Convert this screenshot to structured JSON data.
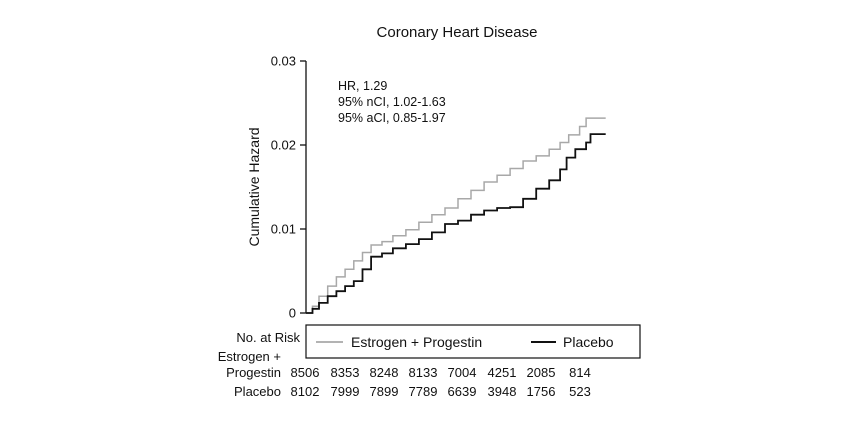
{
  "chart_data": {
    "type": "line",
    "title": "Coronary Heart Disease",
    "ylabel": "Cumulative Hazard",
    "xlabel": "",
    "ylim": [
      0,
      0.03
    ],
    "xlim": [
      0,
      7
    ],
    "yticks": [
      {
        "value": 0,
        "label": "0"
      },
      {
        "value": 0.01,
        "label": "0.01"
      },
      {
        "value": 0.02,
        "label": "0.02"
      },
      {
        "value": 0.03,
        "label": "0.03"
      }
    ],
    "annotation": [
      "HR, 1.29",
      "95% nCI, 1.02-1.63",
      "95% aCI, 0.85-1.97"
    ],
    "legend_position": "bottom",
    "series": [
      {
        "name": "Estrogen + Progestin",
        "color": "#a8a8a8",
        "points": [
          [
            0,
            0
          ],
          [
            0.15,
            0.0008
          ],
          [
            0.3,
            0.002
          ],
          [
            0.5,
            0.0032
          ],
          [
            0.7,
            0.0043
          ],
          [
            0.9,
            0.0052
          ],
          [
            1.1,
            0.0062
          ],
          [
            1.3,
            0.0072
          ],
          [
            1.5,
            0.0081
          ],
          [
            1.75,
            0.0085
          ],
          [
            2.0,
            0.0092
          ],
          [
            2.3,
            0.0099
          ],
          [
            2.6,
            0.0108
          ],
          [
            2.9,
            0.0117
          ],
          [
            3.2,
            0.0125
          ],
          [
            3.5,
            0.0136
          ],
          [
            3.8,
            0.0146
          ],
          [
            4.1,
            0.0156
          ],
          [
            4.4,
            0.0164
          ],
          [
            4.7,
            0.0172
          ],
          [
            5.0,
            0.0181
          ],
          [
            5.3,
            0.0187
          ],
          [
            5.6,
            0.0195
          ],
          [
            5.85,
            0.0203
          ],
          [
            6.05,
            0.0212
          ],
          [
            6.3,
            0.0222
          ],
          [
            6.45,
            0.0232
          ],
          [
            6.9,
            0.0232
          ]
        ]
      },
      {
        "name": "Placebo",
        "color": "#111111",
        "points": [
          [
            0,
            0
          ],
          [
            0.15,
            0.0005
          ],
          [
            0.3,
            0.0012
          ],
          [
            0.5,
            0.002
          ],
          [
            0.7,
            0.0026
          ],
          [
            0.9,
            0.0032
          ],
          [
            1.1,
            0.0038
          ],
          [
            1.3,
            0.0052
          ],
          [
            1.5,
            0.0067
          ],
          [
            1.75,
            0.0071
          ],
          [
            2.0,
            0.0077
          ],
          [
            2.3,
            0.0082
          ],
          [
            2.6,
            0.0088
          ],
          [
            2.9,
            0.0096
          ],
          [
            3.2,
            0.0106
          ],
          [
            3.5,
            0.011
          ],
          [
            3.8,
            0.0117
          ],
          [
            4.1,
            0.0122
          ],
          [
            4.4,
            0.0125
          ],
          [
            4.7,
            0.0126
          ],
          [
            5.0,
            0.0136
          ],
          [
            5.3,
            0.0148
          ],
          [
            5.6,
            0.0158
          ],
          [
            5.85,
            0.0171
          ],
          [
            6.0,
            0.0185
          ],
          [
            6.2,
            0.0195
          ],
          [
            6.45,
            0.0203
          ],
          [
            6.55,
            0.0213
          ],
          [
            6.9,
            0.0213
          ]
        ]
      }
    ],
    "risk_table": {
      "header": "No. at Risk",
      "rows": [
        {
          "label_lines": [
            "Estrogen +",
            "Progestin"
          ],
          "values": [
            "8506",
            "8353",
            "8248",
            "8133",
            "7004",
            "4251",
            "2085",
            "814"
          ]
        },
        {
          "label_lines": [
            "Placebo"
          ],
          "values": [
            "8102",
            "7999",
            "7899",
            "7789",
            "6639",
            "3948",
            "1756",
            "523"
          ]
        }
      ]
    }
  }
}
